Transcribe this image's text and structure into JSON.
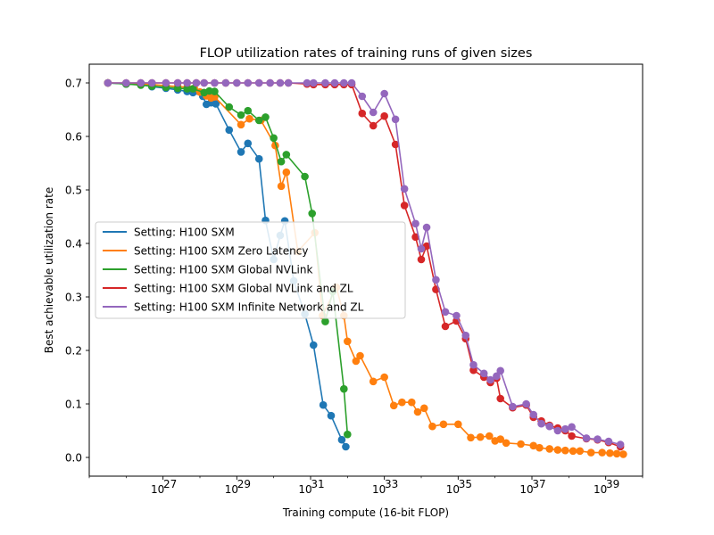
{
  "chart_data": {
    "type": "line",
    "title": "FLOP utilization rates of training runs of given sizes",
    "xlabel": "Training compute (16-bit FLOP)",
    "ylabel": "Best achievable utilization rate",
    "xscale": "log",
    "xlim": [
      1e+25,
      1e+40
    ],
    "ylim": [
      -0.035,
      0.735
    ],
    "xticks": [
      {
        "value": 1e+27,
        "exp": "27"
      },
      {
        "value": 1e+29,
        "exp": "29"
      },
      {
        "value": 1e+31,
        "exp": "31"
      },
      {
        "value": 1e+33,
        "exp": "33"
      },
      {
        "value": 1e+35,
        "exp": "35"
      },
      {
        "value": 1e+37,
        "exp": "37"
      },
      {
        "value": 1e+39,
        "exp": "39"
      }
    ],
    "xtick_base": "10",
    "yticks": [
      {
        "value": 0.0,
        "label": "0.0"
      },
      {
        "value": 0.1,
        "label": "0.1"
      },
      {
        "value": 0.2,
        "label": "0.2"
      },
      {
        "value": 0.3,
        "label": "0.3"
      },
      {
        "value": 0.4,
        "label": "0.4"
      },
      {
        "value": 0.5,
        "label": "0.5"
      },
      {
        "value": 0.6,
        "label": "0.6"
      },
      {
        "value": 0.7,
        "label": "0.7"
      }
    ],
    "legend_position": "center-left",
    "grid": false,
    "series": [
      {
        "name": "Setting: H100 SXM",
        "color": "#1f77b4",
        "points": [
          [
            3.2e+25,
            0.7
          ],
          [
            1e+26,
            0.698
          ],
          [
            2.5e+26,
            0.697
          ],
          [
            5e+26,
            0.693
          ],
          [
            1.2e+27,
            0.69
          ],
          [
            2.5e+27,
            0.687
          ],
          [
            4.5e+27,
            0.684
          ],
          [
            6.5e+27,
            0.682
          ],
          [
            1.2e+28,
            0.675
          ],
          [
            1.5e+28,
            0.66
          ],
          [
            2e+28,
            0.663
          ],
          [
            2.7e+28,
            0.661
          ],
          [
            6.2e+28,
            0.612
          ],
          [
            1.3e+29,
            0.571
          ],
          [
            2e+29,
            0.587
          ],
          [
            4e+29,
            0.558
          ],
          [
            6e+29,
            0.443
          ],
          [
            1e+30,
            0.37
          ],
          [
            1.5e+30,
            0.415
          ],
          [
            2e+30,
            0.442
          ],
          [
            3.5e+30,
            0.33
          ],
          [
            7e+30,
            0.268
          ],
          [
            1.2e+31,
            0.21
          ],
          [
            2.2e+31,
            0.098
          ],
          [
            3.6e+31,
            0.078
          ],
          [
            7e+31,
            0.033
          ],
          [
            9e+31,
            0.02
          ]
        ]
      },
      {
        "name": "Setting: H100 SXM Zero Latency",
        "color": "#ff7f0e",
        "points": [
          [
            3.2e+25,
            0.7
          ],
          [
            1e+26,
            0.699
          ],
          [
            2.5e+26,
            0.698
          ],
          [
            5e+26,
            0.697
          ],
          [
            1.2e+27,
            0.695
          ],
          [
            2.5e+27,
            0.693
          ],
          [
            4.5e+27,
            0.692
          ],
          [
            7e+27,
            0.69
          ],
          [
            1e+28,
            0.683
          ],
          [
            1.5e+28,
            0.676
          ],
          [
            2e+28,
            0.672
          ],
          [
            2.5e+28,
            0.674
          ],
          [
            1.3e+29,
            0.622
          ],
          [
            2.2e+29,
            0.633
          ],
          [
            4.5e+29,
            0.63
          ],
          [
            1.1e+30,
            0.583
          ],
          [
            1.6e+30,
            0.507
          ],
          [
            2.2e+30,
            0.533
          ],
          [
            4.5e+30,
            0.385
          ],
          [
            1.3e+31,
            0.42
          ],
          [
            2.1e+31,
            0.265
          ],
          [
            5e+31,
            0.318
          ],
          [
            8e+31,
            0.265
          ],
          [
            1e+32,
            0.217
          ],
          [
            1.7e+32,
            0.18
          ],
          [
            2.2e+32,
            0.19
          ],
          [
            5e+32,
            0.142
          ],
          [
            1e+33,
            0.15
          ],
          [
            1.8e+33,
            0.097
          ],
          [
            3e+33,
            0.103
          ],
          [
            5.5e+33,
            0.103
          ],
          [
            8e+33,
            0.085
          ],
          [
            1.2e+34,
            0.092
          ],
          [
            2e+34,
            0.058
          ],
          [
            4e+34,
            0.062
          ],
          [
            1e+35,
            0.062
          ],
          [
            2.2e+35,
            0.037
          ],
          [
            4e+35,
            0.038
          ],
          [
            7e+35,
            0.04
          ],
          [
            1e+36,
            0.031
          ],
          [
            1.4e+36,
            0.034
          ],
          [
            2e+36,
            0.027
          ],
          [
            5e+36,
            0.025
          ],
          [
            1.1e+37,
            0.022
          ],
          [
            1.6e+37,
            0.018
          ],
          [
            3e+37,
            0.016
          ],
          [
            5e+37,
            0.014
          ],
          [
            8e+37,
            0.013
          ],
          [
            1.3e+38,
            0.012
          ],
          [
            2e+38,
            0.012
          ],
          [
            4e+38,
            0.009
          ],
          [
            8e+38,
            0.009
          ],
          [
            1.3e+39,
            0.008
          ],
          [
            2e+39,
            0.007
          ],
          [
            3e+39,
            0.006
          ]
        ]
      },
      {
        "name": "Setting: H100 SXM Global NVLink",
        "color": "#2ca02c",
        "points": [
          [
            3.2e+25,
            0.7
          ],
          [
            1e+26,
            0.698
          ],
          [
            2.5e+26,
            0.696
          ],
          [
            5e+26,
            0.694
          ],
          [
            1.2e+27,
            0.692
          ],
          [
            2.5e+27,
            0.69
          ],
          [
            4.5e+27,
            0.689
          ],
          [
            6.5e+27,
            0.689
          ],
          [
            1.3e+28,
            0.682
          ],
          [
            1.8e+28,
            0.685
          ],
          [
            2.5e+28,
            0.684
          ],
          [
            6.2e+28,
            0.655
          ],
          [
            1.3e+29,
            0.64
          ],
          [
            2e+29,
            0.648
          ],
          [
            4e+29,
            0.63
          ],
          [
            6e+29,
            0.636
          ],
          [
            1e+30,
            0.597
          ],
          [
            1.6e+30,
            0.553
          ],
          [
            2.2e+30,
            0.566
          ],
          [
            7e+30,
            0.525
          ],
          [
            1.1e+31,
            0.456
          ],
          [
            2.5e+31,
            0.254
          ],
          [
            4e+31,
            0.31
          ],
          [
            8e+31,
            0.128
          ],
          [
            1e+32,
            0.043
          ]
        ]
      },
      {
        "name": "Setting: H100 SXM Global NVLink and ZL",
        "color": "#d62728",
        "points": [
          [
            3.2e+25,
            0.7
          ],
          [
            1e+26,
            0.7
          ],
          [
            2.5e+26,
            0.7
          ],
          [
            5e+26,
            0.7
          ],
          [
            1.2e+27,
            0.7
          ],
          [
            2.5e+27,
            0.7
          ],
          [
            4.5e+27,
            0.7
          ],
          [
            8e+27,
            0.7
          ],
          [
            1.3e+28,
            0.7
          ],
          [
            2.5e+28,
            0.7
          ],
          [
            5e+28,
            0.7
          ],
          [
            1e+29,
            0.7
          ],
          [
            2e+29,
            0.7
          ],
          [
            4e+29,
            0.7
          ],
          [
            8e+29,
            0.7
          ],
          [
            1.5e+30,
            0.7
          ],
          [
            2.5e+30,
            0.7
          ],
          [
            8e+30,
            0.698
          ],
          [
            1.2e+31,
            0.697
          ],
          [
            2.5e+31,
            0.697
          ],
          [
            4.5e+31,
            0.697
          ],
          [
            8e+31,
            0.697
          ],
          [
            1.3e+32,
            0.697
          ],
          [
            2.5e+32,
            0.643
          ],
          [
            5e+32,
            0.62
          ],
          [
            1e+33,
            0.638
          ],
          [
            2e+33,
            0.585
          ],
          [
            3.5e+33,
            0.471
          ],
          [
            7e+33,
            0.412
          ],
          [
            1e+34,
            0.37
          ],
          [
            1.4e+34,
            0.395
          ],
          [
            2.5e+34,
            0.314
          ],
          [
            4.5e+34,
            0.245
          ],
          [
            9e+34,
            0.255
          ],
          [
            1.6e+35,
            0.222
          ],
          [
            2.6e+35,
            0.163
          ],
          [
            5e+35,
            0.15
          ],
          [
            7.5e+35,
            0.14
          ],
          [
            1.1e+36,
            0.148
          ],
          [
            1.4e+36,
            0.11
          ],
          [
            3e+36,
            0.093
          ],
          [
            7e+36,
            0.098
          ],
          [
            1.1e+37,
            0.075
          ],
          [
            1.8e+37,
            0.068
          ],
          [
            3e+37,
            0.06
          ],
          [
            5e+37,
            0.055
          ],
          [
            8e+37,
            0.05
          ],
          [
            1.2e+38,
            0.04
          ],
          [
            3e+38,
            0.035
          ],
          [
            6e+38,
            0.033
          ],
          [
            1.2e+39,
            0.028
          ],
          [
            2.5e+39,
            0.02
          ]
        ]
      },
      {
        "name": "Setting: H100 SXM Infinite Network and ZL",
        "color": "#9467bd",
        "points": [
          [
            3.2e+25,
            0.7
          ],
          [
            1e+26,
            0.7
          ],
          [
            2.5e+26,
            0.7
          ],
          [
            5e+26,
            0.7
          ],
          [
            1.2e+27,
            0.7
          ],
          [
            2.5e+27,
            0.7
          ],
          [
            4.5e+27,
            0.7
          ],
          [
            8e+27,
            0.7
          ],
          [
            1.3e+28,
            0.7
          ],
          [
            2.5e+28,
            0.7
          ],
          [
            5e+28,
            0.7
          ],
          [
            1e+29,
            0.7
          ],
          [
            2e+29,
            0.7
          ],
          [
            4e+29,
            0.7
          ],
          [
            8e+29,
            0.7
          ],
          [
            1.5e+30,
            0.7
          ],
          [
            2.5e+30,
            0.7
          ],
          [
            8e+30,
            0.7
          ],
          [
            1.2e+31,
            0.7
          ],
          [
            2.5e+31,
            0.7
          ],
          [
            4.5e+31,
            0.7
          ],
          [
            8e+31,
            0.7
          ],
          [
            1.3e+32,
            0.7
          ],
          [
            2.5e+32,
            0.675
          ],
          [
            5e+32,
            0.645
          ],
          [
            1e+33,
            0.68
          ],
          [
            2e+33,
            0.632
          ],
          [
            3.5e+33,
            0.502
          ],
          [
            7e+33,
            0.437
          ],
          [
            1e+34,
            0.39
          ],
          [
            1.4e+34,
            0.43
          ],
          [
            2.5e+34,
            0.332
          ],
          [
            4.5e+34,
            0.272
          ],
          [
            9e+34,
            0.265
          ],
          [
            1.6e+35,
            0.228
          ],
          [
            2.6e+35,
            0.173
          ],
          [
            5e+35,
            0.157
          ],
          [
            7.5e+35,
            0.145
          ],
          [
            1.1e+36,
            0.152
          ],
          [
            1.4e+36,
            0.162
          ],
          [
            3e+36,
            0.095
          ],
          [
            7e+36,
            0.1
          ],
          [
            1.1e+37,
            0.08
          ],
          [
            1.8e+37,
            0.063
          ],
          [
            3e+37,
            0.058
          ],
          [
            5e+37,
            0.05
          ],
          [
            8e+37,
            0.053
          ],
          [
            1.2e+38,
            0.057
          ],
          [
            3e+38,
            0.036
          ],
          [
            6e+38,
            0.034
          ],
          [
            1.2e+39,
            0.03
          ],
          [
            2.5e+39,
            0.024
          ]
        ]
      }
    ]
  }
}
